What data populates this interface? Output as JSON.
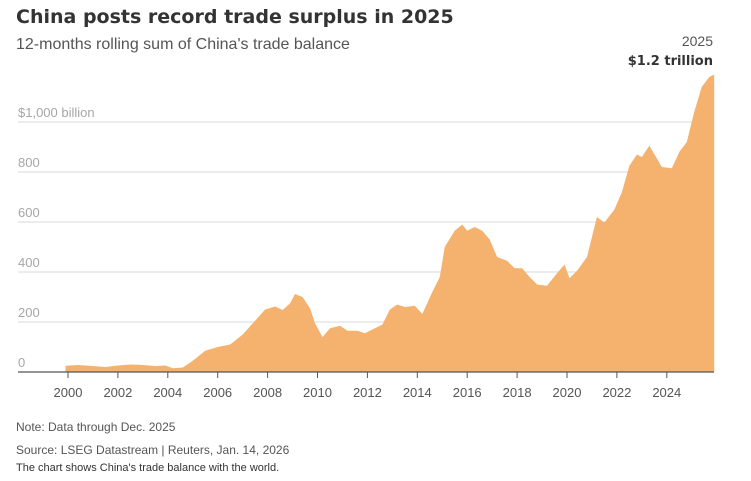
{
  "title": "China posts record trade surplus in 2025",
  "subtitle": "12-months rolling sum of China's trade balance",
  "colors": {
    "area": "#f5b26e",
    "grid": "#d9d9d9",
    "axis": "#555555",
    "tick_label": "#a6a6a6"
  },
  "notes": {
    "note": "Note: Data through Dec. 2025",
    "source": "Source: LSEG Datastream | Reuters, Jan. 14, 2026",
    "caption": "The chart shows China's trade balance with the world."
  },
  "chart_data": {
    "type": "area",
    "title": "China posts record trade surplus in 2025",
    "subtitle": "12-months rolling sum of China's trade balance",
    "xlabel": "",
    "ylabel": "",
    "xlim": [
      1999,
      2026
    ],
    "ylim": [
      0,
      1200
    ],
    "grid": true,
    "y_ticks": [
      {
        "value": 0,
        "label": "0"
      },
      {
        "value": 200,
        "label": "200"
      },
      {
        "value": 400,
        "label": "400"
      },
      {
        "value": 600,
        "label": "600"
      },
      {
        "value": 800,
        "label": "800"
      },
      {
        "value": 1000,
        "label": "$1,000 billion"
      }
    ],
    "x_ticks": [
      {
        "value": 2000,
        "label": "2000"
      },
      {
        "value": 2002,
        "label": "2002"
      },
      {
        "value": 2004,
        "label": "2004"
      },
      {
        "value": 2006,
        "label": "2006"
      },
      {
        "value": 2008,
        "label": "2008"
      },
      {
        "value": 2010,
        "label": "2010"
      },
      {
        "value": 2012,
        "label": "2012"
      },
      {
        "value": 2014,
        "label": "2014"
      },
      {
        "value": 2016,
        "label": "2016"
      },
      {
        "value": 2018,
        "label": "2018"
      },
      {
        "value": 2020,
        "label": "2020"
      },
      {
        "value": 2022,
        "label": "2022"
      },
      {
        "value": 2024,
        "label": "2024"
      }
    ],
    "annotation": {
      "year_label": "2025",
      "value_label": "$1.2 trillion",
      "x": 2025.9,
      "y": 1190
    },
    "series": [
      {
        "values": [
          [
            1999.9,
            25
          ],
          [
            2000.4,
            28
          ],
          [
            2001.0,
            24
          ],
          [
            2001.5,
            20
          ],
          [
            2002.0,
            26
          ],
          [
            2002.5,
            30
          ],
          [
            2003.0,
            28
          ],
          [
            2003.5,
            24
          ],
          [
            2003.9,
            26
          ],
          [
            2004.2,
            15
          ],
          [
            2004.6,
            18
          ],
          [
            2005.0,
            45
          ],
          [
            2005.5,
            85
          ],
          [
            2006.0,
            100
          ],
          [
            2006.5,
            110
          ],
          [
            2007.0,
            150
          ],
          [
            2007.5,
            205
          ],
          [
            2007.9,
            250
          ],
          [
            2008.3,
            262
          ],
          [
            2008.6,
            248
          ],
          [
            2008.9,
            275
          ],
          [
            2009.1,
            312
          ],
          [
            2009.4,
            300
          ],
          [
            2009.7,
            255
          ],
          [
            2009.9,
            195
          ],
          [
            2010.2,
            140
          ],
          [
            2010.5,
            175
          ],
          [
            2010.9,
            185
          ],
          [
            2011.2,
            165
          ],
          [
            2011.6,
            165
          ],
          [
            2011.9,
            155
          ],
          [
            2012.2,
            170
          ],
          [
            2012.6,
            190
          ],
          [
            2012.9,
            250
          ],
          [
            2013.2,
            270
          ],
          [
            2013.5,
            260
          ],
          [
            2013.9,
            265
          ],
          [
            2014.2,
            232
          ],
          [
            2014.6,
            320
          ],
          [
            2014.9,
            380
          ],
          [
            2015.1,
            500
          ],
          [
            2015.5,
            565
          ],
          [
            2015.8,
            590
          ],
          [
            2016.0,
            565
          ],
          [
            2016.3,
            580
          ],
          [
            2016.6,
            565
          ],
          [
            2016.9,
            530
          ],
          [
            2017.2,
            460
          ],
          [
            2017.6,
            445
          ],
          [
            2017.9,
            415
          ],
          [
            2018.2,
            415
          ],
          [
            2018.5,
            380
          ],
          [
            2018.8,
            350
          ],
          [
            2019.2,
            345
          ],
          [
            2019.6,
            395
          ],
          [
            2019.9,
            430
          ],
          [
            2020.1,
            375
          ],
          [
            2020.4,
            405
          ],
          [
            2020.8,
            460
          ],
          [
            2021.2,
            620
          ],
          [
            2021.5,
            598
          ],
          [
            2021.9,
            650
          ],
          [
            2022.2,
            720
          ],
          [
            2022.5,
            825
          ],
          [
            2022.8,
            870
          ],
          [
            2023.0,
            860
          ],
          [
            2023.3,
            905
          ],
          [
            2023.6,
            855
          ],
          [
            2023.8,
            820
          ],
          [
            2024.2,
            815
          ],
          [
            2024.5,
            880
          ],
          [
            2024.8,
            920
          ],
          [
            2025.1,
            1040
          ],
          [
            2025.4,
            1140
          ],
          [
            2025.7,
            1180
          ],
          [
            2025.9,
            1190
          ]
        ]
      }
    ]
  }
}
